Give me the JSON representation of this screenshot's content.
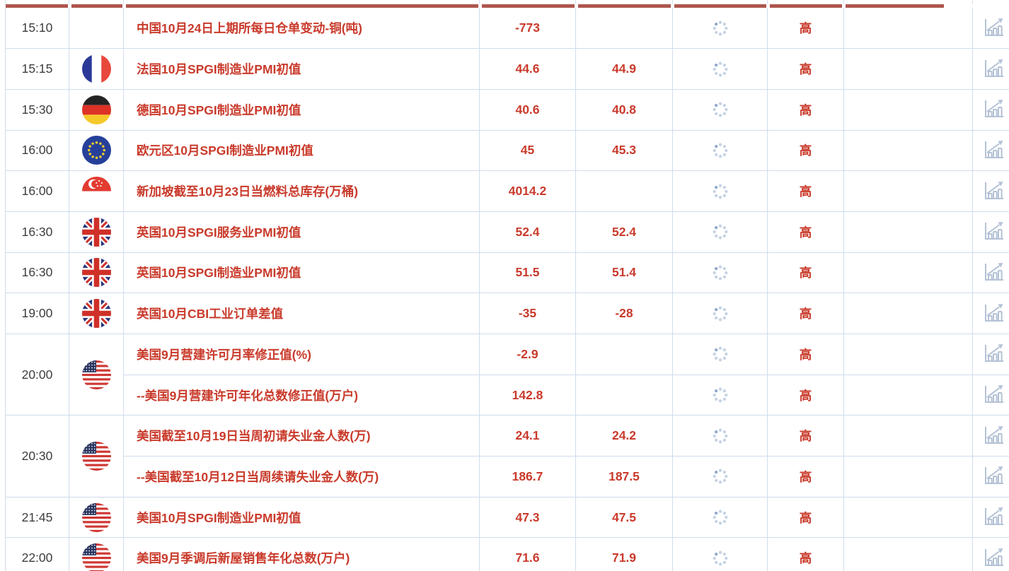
{
  "page": {
    "kind": "economic-calendar-table",
    "importance_label_all_rows": "高"
  },
  "colors": {
    "accent_bar": "#ae564e",
    "event_text": "#c93a2b",
    "value_text": "#c93a2b",
    "importance_text": "#c93a2b",
    "time_text": "#3d3d3d",
    "grid_line": "#cfdcec",
    "icon_blue_gray": "#b4c2d6",
    "spinner_dot": "#c5d3e3",
    "spinner_dot_active": "#8fa9c9"
  },
  "icons": {
    "spinner": "loading-spinner-icon",
    "chart": "bar-chart-icon"
  },
  "table": {
    "groups": [
      {
        "time": "15:10",
        "flag": null,
        "events": [
          {
            "name": "中国10月24日上期所每日仓单变动-铜(吨)",
            "actual": "-773",
            "forecast": "",
            "importance": "高"
          }
        ]
      },
      {
        "time": "15:15",
        "flag": "france",
        "events": [
          {
            "name": "法国10月SPGI制造业PMI初值",
            "actual": "44.6",
            "forecast": "44.9",
            "importance": "高"
          }
        ]
      },
      {
        "time": "15:30",
        "flag": "germany",
        "events": [
          {
            "name": "德国10月SPGI制造业PMI初值",
            "actual": "40.6",
            "forecast": "40.8",
            "importance": "高"
          }
        ]
      },
      {
        "time": "16:00",
        "flag": "eu",
        "events": [
          {
            "name": "欧元区10月SPGI制造业PMI初值",
            "actual": "45",
            "forecast": "45.3",
            "importance": "高"
          }
        ]
      },
      {
        "time": "16:00",
        "flag": "singapore",
        "events": [
          {
            "name": "新加坡截至10月23日当燃料总库存(万桶)",
            "actual": "4014.2",
            "forecast": "",
            "importance": "高"
          }
        ]
      },
      {
        "time": "16:30",
        "flag": "uk",
        "events": [
          {
            "name": "英国10月SPGI服务业PMI初值",
            "actual": "52.4",
            "forecast": "52.4",
            "importance": "高"
          }
        ]
      },
      {
        "time": "16:30",
        "flag": "uk",
        "events": [
          {
            "name": "英国10月SPGI制造业PMI初值",
            "actual": "51.5",
            "forecast": "51.4",
            "importance": "高"
          }
        ]
      },
      {
        "time": "19:00",
        "flag": "uk",
        "events": [
          {
            "name": "英国10月CBI工业订单差值",
            "actual": "-35",
            "forecast": "-28",
            "importance": "高"
          }
        ]
      },
      {
        "time": "20:00",
        "flag": "us",
        "events": [
          {
            "name": "美国9月营建许可月率修正值(%)",
            "actual": "-2.9",
            "forecast": "",
            "importance": "高"
          },
          {
            "name": "--美国9月营建许可年化总数修正值(万户)",
            "actual": "142.8",
            "forecast": "",
            "importance": "高"
          }
        ]
      },
      {
        "time": "20:30",
        "flag": "us",
        "events": [
          {
            "name": "美国截至10月19日当周初请失业金人数(万)",
            "actual": "24.1",
            "forecast": "24.2",
            "importance": "高"
          },
          {
            "name": "--美国截至10月12日当周续请失业金人数(万)",
            "actual": "186.7",
            "forecast": "187.5",
            "importance": "高"
          }
        ]
      },
      {
        "time": "21:45",
        "flag": "us",
        "events": [
          {
            "name": "美国10月SPGI制造业PMI初值",
            "actual": "47.3",
            "forecast": "47.5",
            "importance": "高"
          }
        ]
      },
      {
        "time": "22:00",
        "flag": "us",
        "events": [
          {
            "name": "美国9月季调后新屋销售年化总数(万户)",
            "actual": "71.6",
            "forecast": "71.9",
            "importance": "高"
          }
        ]
      }
    ]
  }
}
